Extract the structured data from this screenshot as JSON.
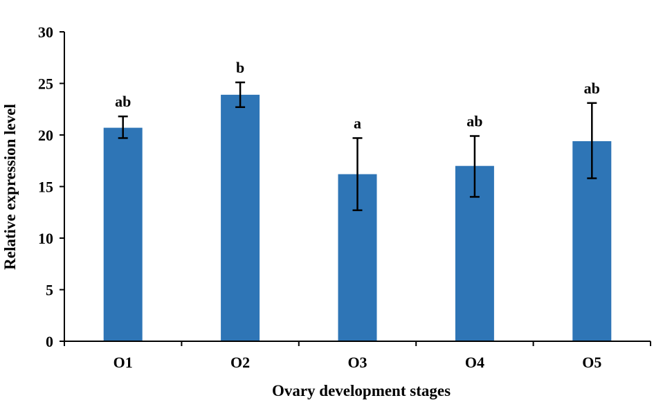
{
  "chart_data": {
    "type": "bar",
    "title": "",
    "xlabel": "Ovary development stages",
    "ylabel": "Relative expression level",
    "categories": [
      "O1",
      "O2",
      "O3",
      "O4",
      "O5"
    ],
    "values": [
      20.7,
      23.9,
      16.2,
      17.0,
      19.4
    ],
    "error_low": [
      19.7,
      22.7,
      12.7,
      14.0,
      15.8
    ],
    "error_high": [
      21.8,
      25.1,
      19.7,
      19.9,
      23.1
    ],
    "significance": [
      "ab",
      "b",
      "a",
      "ab",
      "ab"
    ],
    "ylim": [
      0,
      30
    ],
    "yticks": [
      0,
      5,
      10,
      15,
      20,
      25,
      30
    ],
    "bar_color": "#2E75B6",
    "grid": false
  }
}
